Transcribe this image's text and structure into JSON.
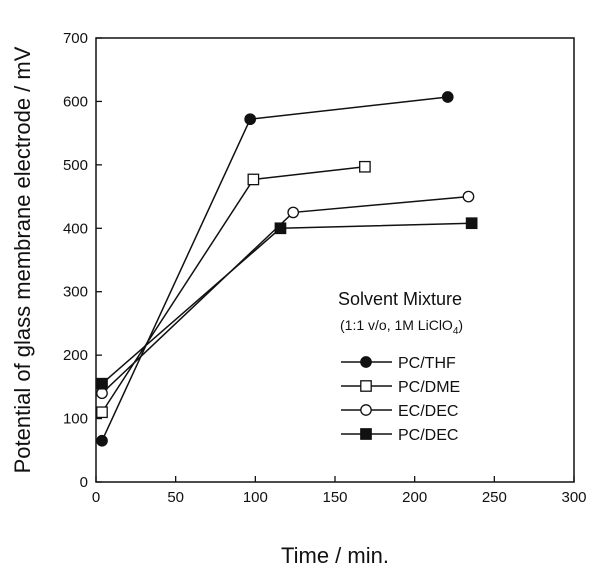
{
  "chart_data": {
    "type": "line",
    "title": "",
    "xlabel": "Time / min.",
    "ylabel": "Potential of glass membrane electrode / mV",
    "xlim": [
      0,
      300
    ],
    "ylim": [
      0,
      700
    ],
    "x_ticks": [
      0,
      50,
      100,
      150,
      200,
      250,
      300
    ],
    "y_ticks": [
      0,
      100,
      200,
      300,
      400,
      500,
      600,
      700
    ],
    "grid": false,
    "legend": {
      "title": "Solvent Mixture",
      "subtitle": "(1:1 v/o, 1M LiClO",
      "subtitle_sub": "4",
      "subtitle_end": ")",
      "placement": "right"
    },
    "series": [
      {
        "name": "PC/THF",
        "marker": "filled-circle",
        "x": [
          0,
          93,
          217
        ],
        "y": [
          65,
          572,
          607
        ]
      },
      {
        "name": "PC/DME",
        "marker": "open-square",
        "x": [
          0,
          95,
          165
        ],
        "y": [
          110,
          477,
          497
        ]
      },
      {
        "name": "EC/DEC",
        "marker": "open-circle",
        "x": [
          0,
          120,
          230
        ],
        "y": [
          140,
          425,
          450
        ]
      },
      {
        "name": "PC/DEC",
        "marker": "filled-square",
        "x": [
          0,
          112,
          232
        ],
        "y": [
          155,
          400,
          408
        ]
      }
    ]
  }
}
